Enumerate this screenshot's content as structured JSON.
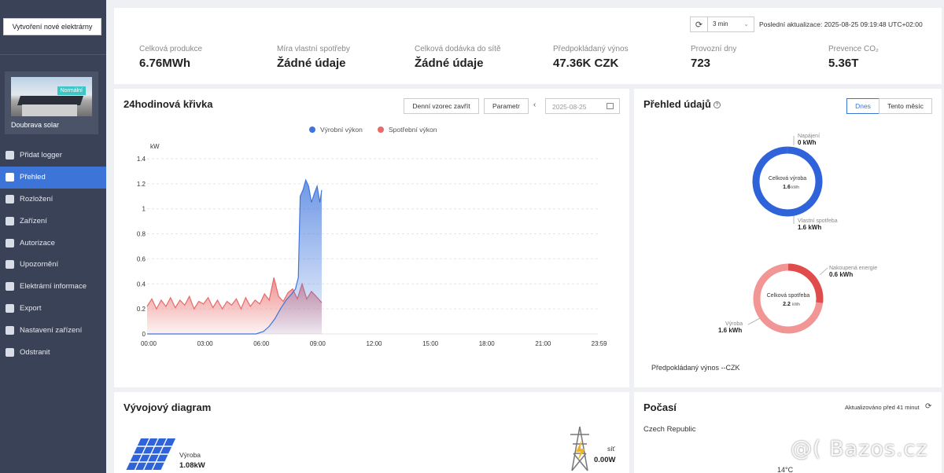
{
  "sidebar": {
    "new_plant_label": "Vytvoření nové elektrárny",
    "plant": {
      "name": "Doubrava solar",
      "badge": "Normální"
    },
    "items": [
      {
        "label": "Přidat logger",
        "icon": "plus-square-icon"
      },
      {
        "label": "Přehled",
        "icon": "chart-icon",
        "active": true
      },
      {
        "label": "Rozložení",
        "icon": "layout-icon"
      },
      {
        "label": "Zařízení",
        "icon": "device-icon"
      },
      {
        "label": "Autorizace",
        "icon": "shield-icon"
      },
      {
        "label": "Upozornění",
        "icon": "alarm-icon"
      },
      {
        "label": "Elektrární informace",
        "icon": "info-card-icon"
      },
      {
        "label": "Export",
        "icon": "export-icon"
      },
      {
        "label": "Nastavení zařízení",
        "icon": "gear-icon"
      },
      {
        "label": "Odstranit",
        "icon": "trash-icon"
      }
    ]
  },
  "header": {
    "refresh_icon": "refresh-icon",
    "interval": "3 min",
    "last_update_label": "Poslední aktualizace:",
    "last_update": "2025-08-25 09:19:48 UTC+02:00"
  },
  "kpis": [
    {
      "label": "Celková produkce",
      "value": "6.76MWh"
    },
    {
      "label": "Míra vlastní spotřeby",
      "value": "Žádné údaje"
    },
    {
      "label": "Celková dodávka do sítě",
      "value": "Žádné údaje"
    },
    {
      "label": "Předpokládaný výnos",
      "value": "47.36K CZK"
    },
    {
      "label": "Provozní dny",
      "value": "723"
    },
    {
      "label": "Prevence CO₂",
      "value": "5.36T"
    }
  ],
  "curve": {
    "title": "24hodinová křivka",
    "btn_daily": "Denní vzorec zavřít",
    "btn_param": "Parametr",
    "date": "2025-08-25",
    "legend": [
      {
        "name": "Výrobní výkon",
        "color": "#3f75dd"
      },
      {
        "name": "Spotřební výkon",
        "color": "#e96a6a"
      }
    ]
  },
  "chart_data": {
    "type": "area",
    "ylabel": "kW",
    "ylim": [
      0,
      1.4
    ],
    "yticks": [
      "0",
      "0.2",
      "0.4",
      "0.6",
      "0.8",
      "1",
      "1.2",
      "1.4"
    ],
    "xticks": [
      "00:00",
      "03:00",
      "06:00",
      "09:00",
      "12:00",
      "15:00",
      "18:00",
      "21:00",
      "23:59"
    ],
    "series": [
      {
        "name": "Výrobní výkon",
        "color": "#3f75dd",
        "x": [
          0,
          1,
          2,
          3,
          4,
          5,
          5.8,
          6.2,
          6.5,
          6.8,
          7.1,
          7.4,
          7.7,
          7.9,
          8.05,
          8.15,
          8.3,
          8.45,
          8.6,
          8.75,
          8.9,
          9.05,
          9.2,
          9.3
        ],
        "values": [
          0,
          0,
          0,
          0,
          0,
          0,
          0,
          0.02,
          0.06,
          0.12,
          0.2,
          0.27,
          0.32,
          0.36,
          0.45,
          1.1,
          1.15,
          1.23,
          1.18,
          1.05,
          1.12,
          1.18,
          1.05,
          1.15
        ]
      },
      {
        "name": "Spotřební výkon",
        "color": "#e96a6a",
        "x": [
          0,
          0.25,
          0.5,
          0.75,
          1,
          1.25,
          1.5,
          1.75,
          2,
          2.25,
          2.5,
          2.75,
          3,
          3.25,
          3.5,
          3.75,
          4,
          4.25,
          4.5,
          4.75,
          5,
          5.25,
          5.5,
          5.75,
          6,
          6.25,
          6.5,
          6.75,
          7,
          7.25,
          7.5,
          7.75,
          8,
          8.25,
          8.5,
          8.75,
          9,
          9.3
        ],
        "values": [
          0.22,
          0.28,
          0.2,
          0.27,
          0.22,
          0.29,
          0.21,
          0.27,
          0.23,
          0.3,
          0.2,
          0.26,
          0.24,
          0.29,
          0.21,
          0.27,
          0.2,
          0.26,
          0.23,
          0.28,
          0.2,
          0.29,
          0.22,
          0.27,
          0.24,
          0.32,
          0.27,
          0.45,
          0.3,
          0.26,
          0.33,
          0.36,
          0.28,
          0.4,
          0.28,
          0.34,
          0.3,
          0.25
        ]
      }
    ]
  },
  "overview": {
    "title": "Přehled údajů",
    "tab_today": "Dnes",
    "tab_month": "Tento měsíc",
    "production": {
      "center_label": "Celková výroba",
      "center_value": "1.6",
      "center_unit": "kWh",
      "feed_label": "Napájení",
      "feed_value": "0 kWh",
      "self_label": "Vlastní spotřeba",
      "self_value": "1.6 kWh",
      "self_fraction": 1.0,
      "color": "#2f63d9"
    },
    "consumption": {
      "center_label": "Celková spotřeba",
      "center_value": "2.2",
      "center_unit": "kWh",
      "bought_label": "Nakoupená energie",
      "bought_value": "0.6 kWh",
      "prod_label": "Výroba",
      "prod_value": "1.6 kWh",
      "bought_fraction": 0.27,
      "color_main": "#f29595",
      "color_bought": "#e04b4b"
    },
    "forecast": "Předpokládaný výnos --CZK"
  },
  "flow": {
    "title": "Vývojový diagram",
    "production_label": "Výroba",
    "production_value": "1.08kW",
    "grid_label": "síť",
    "grid_value": "0.00W"
  },
  "weather": {
    "title": "Počasí",
    "updated": "Aktualizováno před 41 minut",
    "location": "Czech Republic",
    "temp": "14°C"
  },
  "watermark": "@( Bazos.cz"
}
